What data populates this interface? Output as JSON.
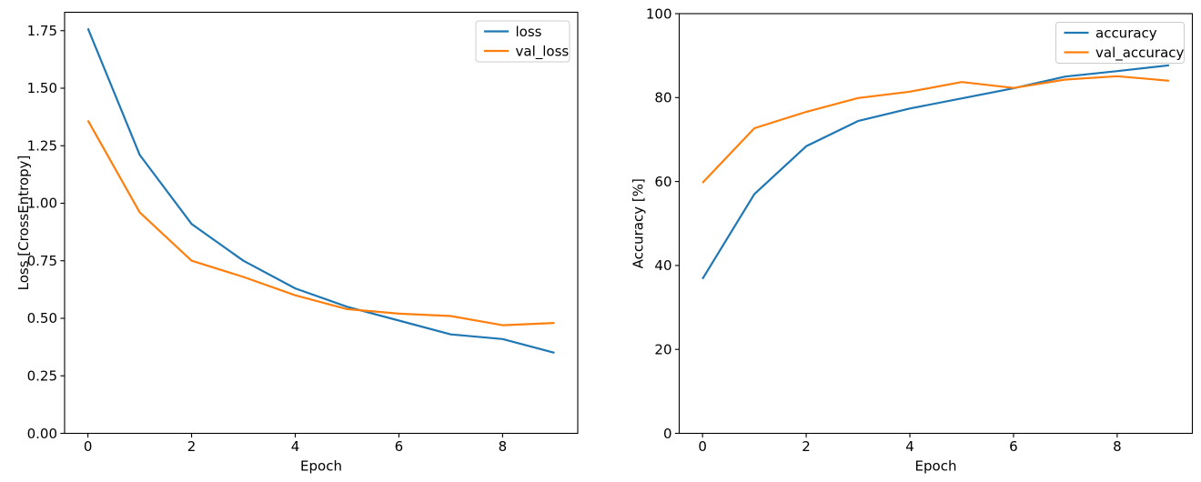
{
  "figure": {
    "background": "#ffffff",
    "accent_blue": "#1f77b4",
    "accent_orange": "#ff7f0e"
  },
  "chart_data": [
    {
      "id": "loss",
      "type": "line",
      "title": "",
      "xlabel": "Epoch",
      "ylabel": "Loss [CrossEntropy]",
      "x": [
        0,
        1,
        2,
        3,
        4,
        5,
        6,
        7,
        8,
        9
      ],
      "series": [
        {
          "name": "loss",
          "color": "#1f77b4",
          "values": [
            1.76,
            1.21,
            0.91,
            0.75,
            0.63,
            0.55,
            0.49,
            0.43,
            0.41,
            0.35
          ]
        },
        {
          "name": "val_loss",
          "color": "#ff7f0e",
          "values": [
            1.36,
            0.96,
            0.75,
            0.68,
            0.6,
            0.54,
            0.52,
            0.51,
            0.47,
            0.48
          ]
        }
      ],
      "xlim": [
        -0.45,
        9.45
      ],
      "ylim": [
        0,
        1.83
      ],
      "xticks": {
        "values": [
          0,
          2,
          4,
          6,
          8
        ],
        "labels": [
          "0",
          "2",
          "4",
          "6",
          "8"
        ]
      },
      "yticks": {
        "values": [
          0,
          0.25,
          0.5,
          0.75,
          1.0,
          1.25,
          1.5,
          1.75
        ],
        "labels": [
          "0.00",
          "0.25",
          "0.50",
          "0.75",
          "1.00",
          "1.25",
          "1.50",
          "1.75"
        ]
      },
      "grid": false,
      "legend": {
        "position": "upper right",
        "entries": [
          "loss",
          "val_loss"
        ]
      }
    },
    {
      "id": "accuracy",
      "type": "line",
      "title": "",
      "xlabel": "Epoch",
      "ylabel": "Accuracy [%]",
      "x": [
        0,
        1,
        2,
        3,
        4,
        5,
        6,
        7,
        8,
        9
      ],
      "series": [
        {
          "name": "accuracy",
          "color": "#1f77b4",
          "values": [
            36.8,
            57.0,
            68.4,
            74.4,
            77.4,
            79.8,
            82.2,
            85.0,
            86.3,
            87.7
          ]
        },
        {
          "name": "val_accuracy",
          "color": "#ff7f0e",
          "values": [
            59.7,
            72.7,
            76.6,
            79.9,
            81.4,
            83.7,
            82.3,
            84.3,
            85.1,
            84.0
          ]
        }
      ],
      "xlim": [
        -0.45,
        9.45
      ],
      "ylim": [
        0,
        100
      ],
      "xticks": {
        "values": [
          0,
          2,
          4,
          6,
          8
        ],
        "labels": [
          "0",
          "2",
          "4",
          "6",
          "8"
        ]
      },
      "yticks": {
        "values": [
          0,
          20,
          40,
          60,
          80,
          100
        ],
        "labels": [
          "0",
          "20",
          "40",
          "60",
          "80",
          "100"
        ]
      },
      "grid": false,
      "legend": {
        "position": "upper right",
        "entries": [
          "accuracy",
          "val_accuracy"
        ]
      }
    }
  ]
}
